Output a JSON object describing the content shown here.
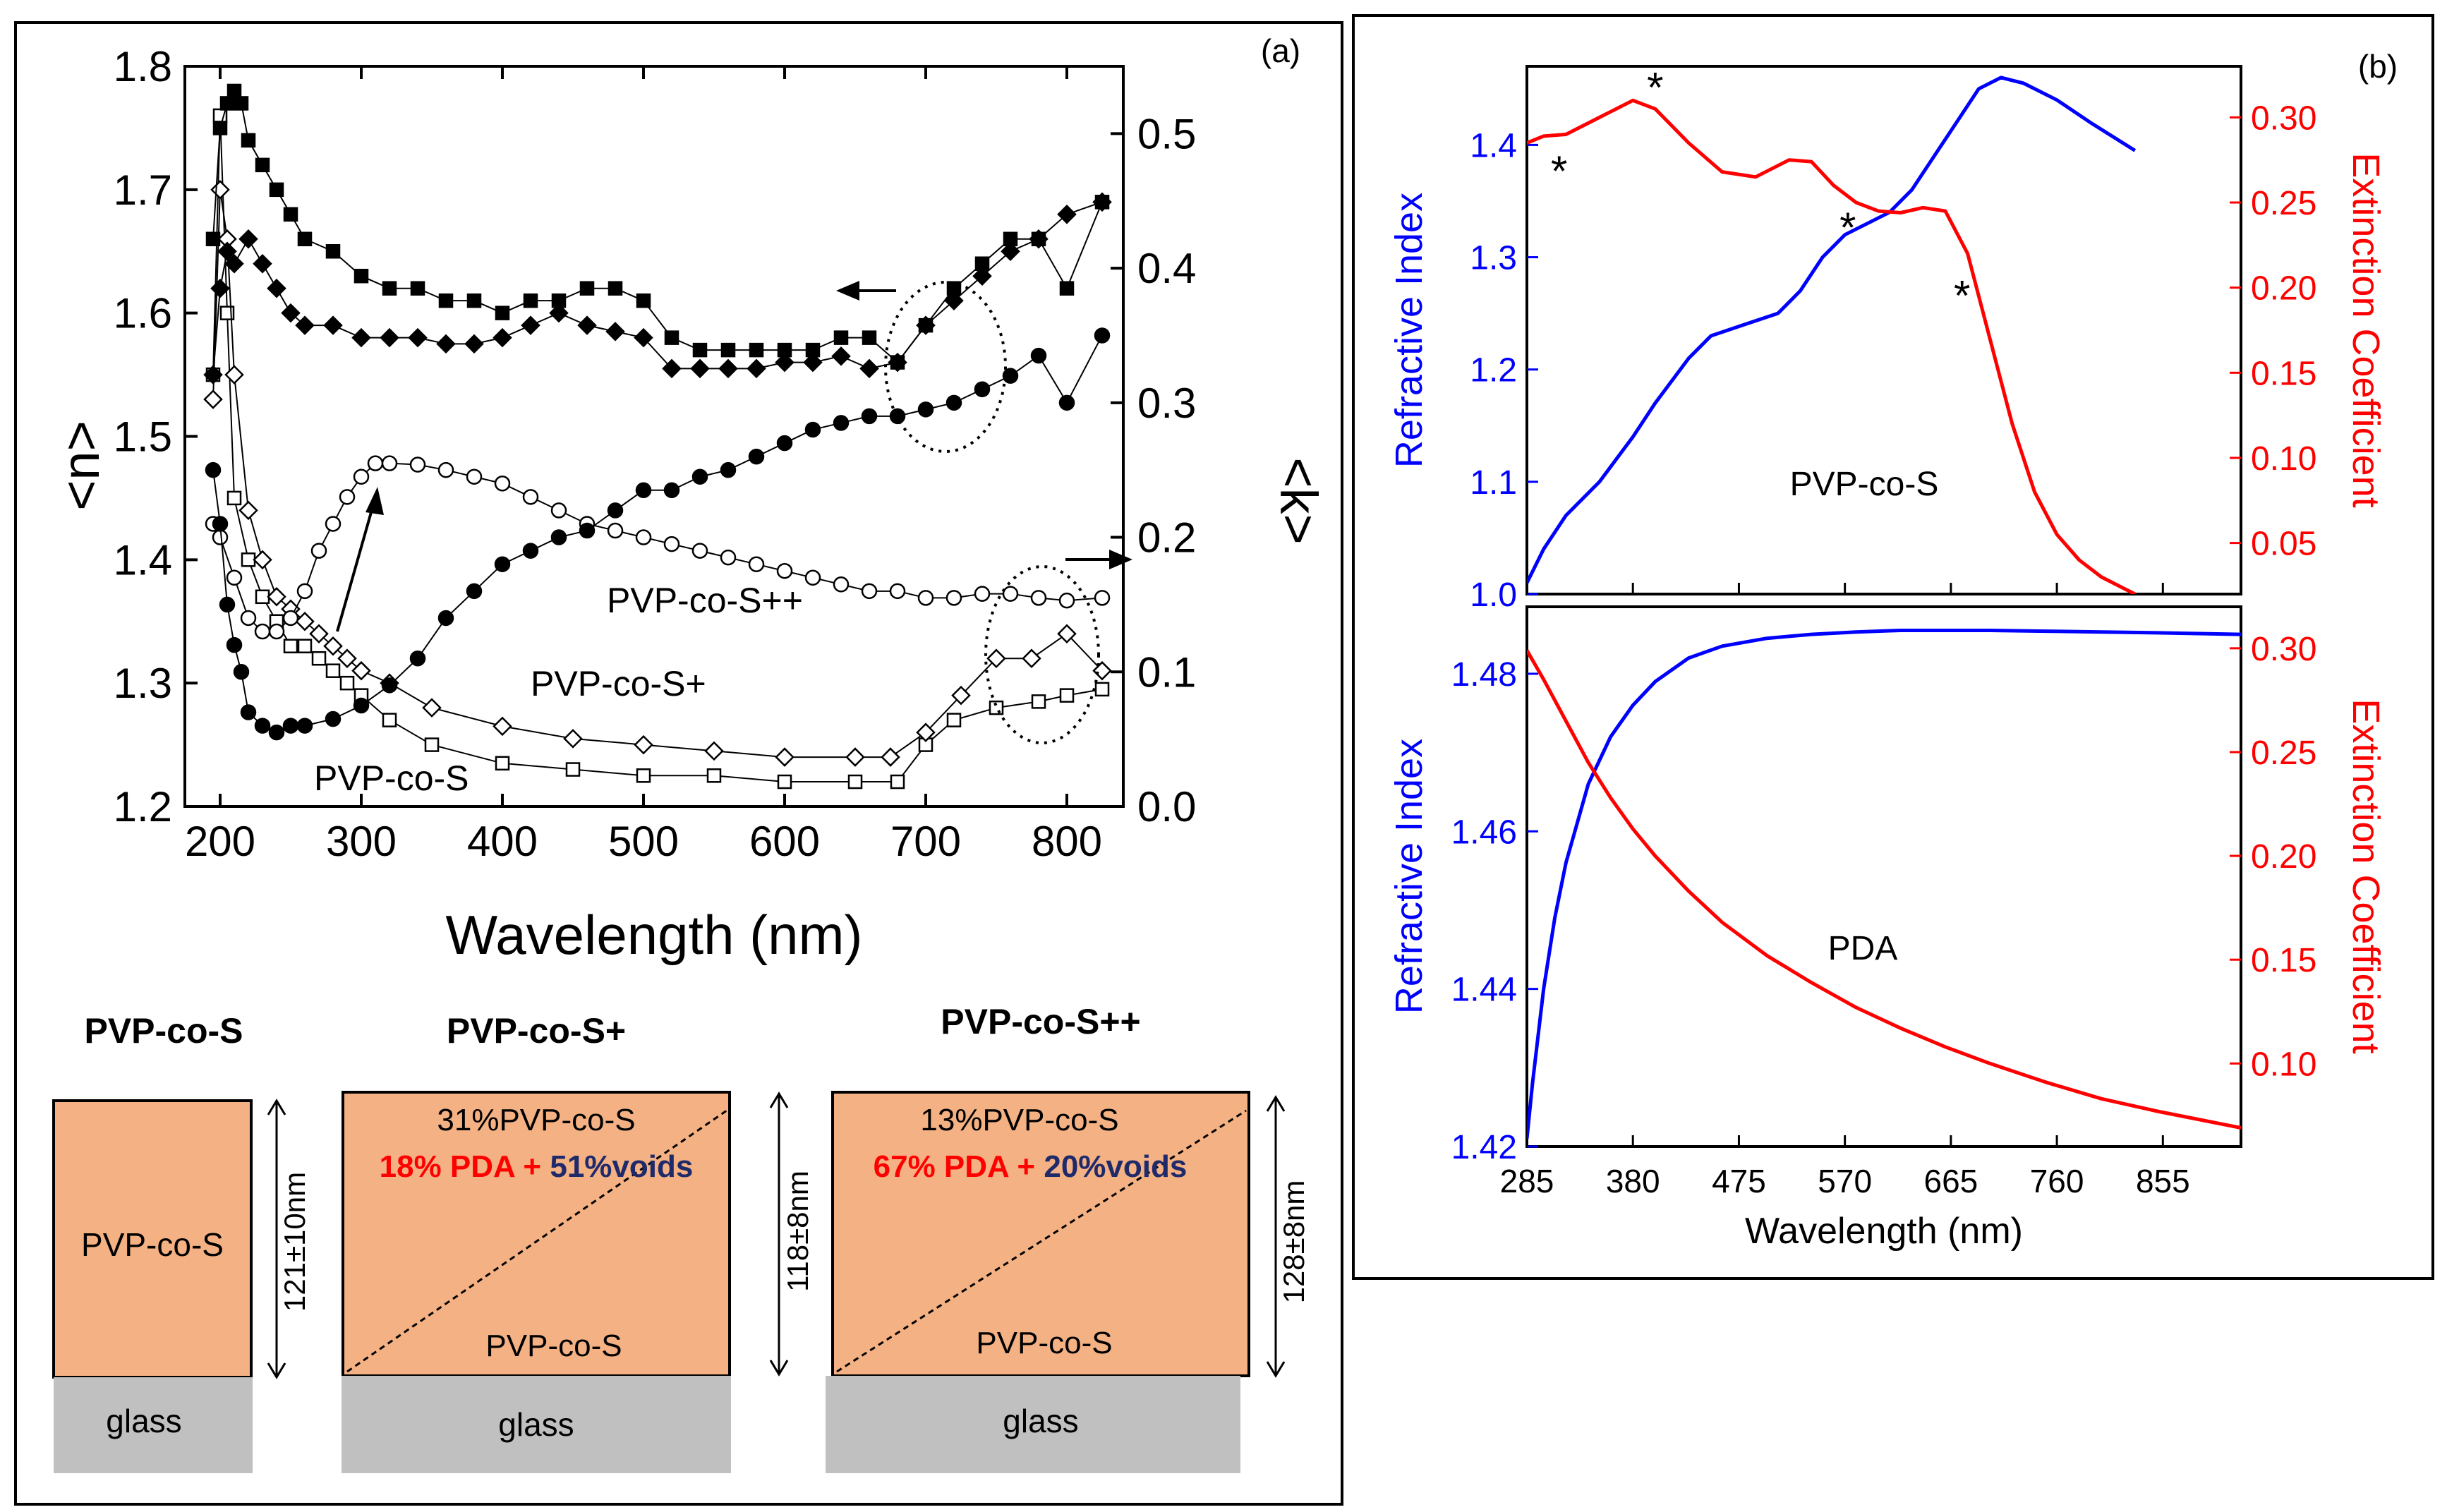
{
  "panel_a": {
    "label": "(a)",
    "xlabel": "Wavelength (nm)",
    "ylabel_left": "<n>",
    "ylabel_right": "<k>",
    "x_ticks": [
      "200",
      "300",
      "400",
      "500",
      "600",
      "700",
      "800"
    ],
    "y_left_ticks": [
      "1.2",
      "1.3",
      "1.4",
      "1.5",
      "1.6",
      "1.7",
      "1.8"
    ],
    "y_right_ticks": [
      "0.0",
      "0.1",
      "0.2",
      "0.3",
      "0.4",
      "0.5"
    ],
    "annotations": {
      "s": "PVP-co-S",
      "s_plus": "PVP-co-S+",
      "s_plus_plus": "PVP-co-S++"
    }
  },
  "schematics": [
    {
      "title": "PVP-co-S",
      "film_label": "PVP-co-S",
      "substrate": "glass",
      "thickness": "121±10nm"
    },
    {
      "title": "PVP-co-S+",
      "top_label": "31%PVP-co-S",
      "pda": "18% PDA",
      "plus": " + ",
      "voids": "51%voids",
      "bottom_label": "PVP-co-S",
      "substrate": "glass",
      "thickness": "118±8nm"
    },
    {
      "title": "PVP-co-S++",
      "top_label": "13%PVP-co-S",
      "pda": "67% PDA",
      "plus": " + ",
      "voids": "20%voids",
      "bottom_label": "PVP-co-S",
      "substrate": "glass",
      "thickness": "128±8nm"
    }
  ],
  "panel_b": {
    "label": "(b)",
    "xlabel": "Wavelength (nm)",
    "top": {
      "ylabel_left": "Refractive Index",
      "ylabel_right": "Extinction Coefficient",
      "left_ticks": [
        "1.0",
        "1.1",
        "1.2",
        "1.3",
        "1.4"
      ],
      "right_ticks": [
        "0.05",
        "0.10",
        "0.15",
        "0.20",
        "0.25",
        "0.30"
      ],
      "annotation": "PVP-co-S",
      "markers": [
        "*",
        "*",
        "*",
        "*"
      ]
    },
    "bottom": {
      "ylabel_left": "Refractive Index",
      "ylabel_right": "Extinction Coefficient",
      "left_ticks": [
        "1.42",
        "1.44",
        "1.46",
        "1.48"
      ],
      "right_ticks": [
        "0.10",
        "0.15",
        "0.20",
        "0.25",
        "0.30"
      ],
      "annotation": "PDA"
    },
    "x_ticks": [
      "285",
      "380",
      "475",
      "570",
      "665",
      "760",
      "855"
    ]
  },
  "colors": {
    "n_curve": "#0000ff",
    "k_curve": "#ff0000",
    "film": "#f4b183",
    "glass": "#c0c0c0",
    "pda_text": "#ff0000",
    "voids_text": "#1f2a6b"
  },
  "chart_data": [
    {
      "type": "scatter",
      "title": "(a)",
      "xlabel": "Wavelength (nm)",
      "ylabel": "<n>",
      "ylabel_right": "<k>",
      "xlim": [
        175,
        840
      ],
      "ylim": [
        1.2,
        1.8
      ],
      "ylim_right": [
        0.0,
        0.55
      ],
      "series": [
        {
          "name": "PVP-co-S n",
          "axis": "left",
          "marker": "open-square",
          "x": [
            195,
            200,
            205,
            210,
            220,
            230,
            240,
            250,
            260,
            270,
            280,
            290,
            300,
            320,
            350,
            400,
            450,
            500,
            550,
            600,
            650,
            680,
            700,
            720,
            750,
            780,
            800,
            825
          ],
          "y": [
            1.55,
            1.76,
            1.6,
            1.45,
            1.4,
            1.37,
            1.35,
            1.33,
            1.33,
            1.32,
            1.31,
            1.3,
            1.29,
            1.27,
            1.25,
            1.235,
            1.23,
            1.225,
            1.225,
            1.22,
            1.22,
            1.22,
            1.25,
            1.27,
            1.28,
            1.285,
            1.29,
            1.295
          ]
        },
        {
          "name": "PVP-co-S+ n",
          "axis": "left",
          "marker": "open-diamond",
          "x": [
            195,
            200,
            205,
            210,
            220,
            230,
            240,
            250,
            260,
            270,
            280,
            290,
            300,
            320,
            350,
            400,
            450,
            500,
            550,
            600,
            650,
            675,
            700,
            725,
            750,
            775,
            800,
            825
          ],
          "y": [
            1.53,
            1.7,
            1.66,
            1.55,
            1.44,
            1.4,
            1.37,
            1.36,
            1.35,
            1.34,
            1.33,
            1.32,
            1.31,
            1.3,
            1.28,
            1.265,
            1.255,
            1.25,
            1.245,
            1.24,
            1.24,
            1.24,
            1.26,
            1.29,
            1.32,
            1.32,
            1.34,
            1.31
          ]
        },
        {
          "name": "PVP-co-S++ k",
          "axis": "right",
          "marker": "open-circle",
          "x": [
            195,
            200,
            210,
            220,
            230,
            240,
            250,
            260,
            270,
            280,
            290,
            300,
            310,
            320,
            340,
            360,
            380,
            400,
            420,
            440,
            460,
            480,
            500,
            520,
            540,
            560,
            580,
            600,
            620,
            640,
            660,
            680,
            700,
            720,
            740,
            760,
            780,
            800,
            825
          ],
          "y": [
            0.21,
            0.2,
            0.17,
            0.14,
            0.13,
            0.13,
            0.14,
            0.16,
            0.19,
            0.21,
            0.23,
            0.245,
            0.255,
            0.255,
            0.254,
            0.25,
            0.245,
            0.24,
            0.23,
            0.22,
            0.21,
            0.205,
            0.2,
            0.195,
            0.19,
            0.185,
            0.18,
            0.175,
            0.17,
            0.165,
            0.16,
            0.16,
            0.155,
            0.155,
            0.158,
            0.158,
            0.155,
            0.153,
            0.155
          ]
        },
        {
          "name": "PVP-co-S n (filled)",
          "axis": "left",
          "marker": "filled-square",
          "x": [
            195,
            200,
            205,
            210,
            215,
            220,
            230,
            240,
            250,
            260,
            280,
            300,
            320,
            340,
            360,
            380,
            400,
            420,
            440,
            460,
            480,
            500,
            520,
            540,
            560,
            580,
            600,
            620,
            640,
            660,
            680,
            700,
            720,
            740,
            760,
            780,
            800,
            825
          ],
          "y": [
            1.66,
            1.75,
            1.77,
            1.78,
            1.77,
            1.74,
            1.72,
            1.7,
            1.68,
            1.66,
            1.65,
            1.63,
            1.62,
            1.62,
            1.61,
            1.61,
            1.6,
            1.61,
            1.61,
            1.62,
            1.62,
            1.61,
            1.58,
            1.57,
            1.57,
            1.57,
            1.57,
            1.57,
            1.58,
            1.58,
            1.56,
            1.59,
            1.62,
            1.64,
            1.66,
            1.66,
            1.62,
            1.69
          ]
        },
        {
          "name": "PVP-co-S+ n (filled)",
          "axis": "left",
          "marker": "filled-diamond",
          "x": [
            195,
            200,
            205,
            210,
            220,
            230,
            240,
            250,
            260,
            280,
            300,
            320,
            340,
            360,
            380,
            400,
            420,
            440,
            460,
            480,
            500,
            520,
            540,
            560,
            580,
            600,
            620,
            640,
            660,
            680,
            700,
            720,
            740,
            760,
            780,
            800,
            825
          ],
          "y": [
            1.55,
            1.62,
            1.65,
            1.64,
            1.66,
            1.64,
            1.62,
            1.6,
            1.59,
            1.59,
            1.58,
            1.58,
            1.58,
            1.575,
            1.575,
            1.58,
            1.59,
            1.6,
            1.59,
            1.585,
            1.58,
            1.555,
            1.555,
            1.555,
            1.555,
            1.56,
            1.56,
            1.565,
            1.555,
            1.56,
            1.59,
            1.61,
            1.63,
            1.65,
            1.66,
            1.68,
            1.69
          ]
        },
        {
          "name": "PVP-co-S++ k (filled)",
          "axis": "right",
          "marker": "filled-circle",
          "x": [
            195,
            200,
            205,
            210,
            215,
            220,
            230,
            240,
            250,
            260,
            280,
            300,
            320,
            340,
            360,
            380,
            400,
            420,
            440,
            460,
            480,
            500,
            520,
            540,
            560,
            580,
            600,
            620,
            640,
            660,
            680,
            700,
            720,
            740,
            760,
            780,
            800,
            825
          ],
          "y": [
            0.25,
            0.21,
            0.15,
            0.12,
            0.1,
            0.07,
            0.06,
            0.055,
            0.06,
            0.06,
            0.065,
            0.075,
            0.09,
            0.11,
            0.14,
            0.16,
            0.18,
            0.19,
            0.2,
            0.205,
            0.22,
            0.235,
            0.235,
            0.245,
            0.25,
            0.26,
            0.27,
            0.28,
            0.285,
            0.29,
            0.29,
            0.295,
            0.3,
            0.31,
            0.32,
            0.335,
            0.3,
            0.35
          ]
        }
      ]
    },
    {
      "type": "line",
      "title": "(b) PVP-co-S",
      "xlabel": "Wavelength (nm)",
      "ylabel": "Refractive Index",
      "ylabel_right": "Extinction Coefficient",
      "xlim": [
        285,
        925
      ],
      "ylim": [
        1.0,
        1.47
      ],
      "ylim_right": [
        0.02,
        0.33
      ],
      "series": [
        {
          "name": "Refractive Index",
          "axis": "left",
          "x": [
            285,
            300,
            320,
            350,
            380,
            400,
            430,
            450,
            480,
            510,
            530,
            550,
            570,
            590,
            610,
            630,
            650,
            670,
            690,
            710,
            730,
            760,
            790,
            830
          ],
          "y": [
            1.01,
            1.04,
            1.07,
            1.1,
            1.14,
            1.17,
            1.21,
            1.23,
            1.24,
            1.25,
            1.27,
            1.3,
            1.32,
            1.33,
            1.34,
            1.36,
            1.39,
            1.42,
            1.45,
            1.46,
            1.455,
            1.44,
            1.42,
            1.395
          ]
        },
        {
          "name": "Extinction Coefficient",
          "axis": "right",
          "x": [
            285,
            300,
            320,
            350,
            380,
            400,
            430,
            460,
            490,
            520,
            540,
            560,
            580,
            600,
            620,
            640,
            660,
            680,
            700,
            720,
            740,
            760,
            780,
            800,
            830
          ],
          "y": [
            0.285,
            0.289,
            0.29,
            0.3,
            0.31,
            0.305,
            0.285,
            0.268,
            0.265,
            0.275,
            0.274,
            0.26,
            0.25,
            0.245,
            0.244,
            0.247,
            0.245,
            0.22,
            0.17,
            0.12,
            0.08,
            0.055,
            0.04,
            0.03,
            0.02
          ]
        }
      ],
      "markers_x": [
        300,
        400,
        560,
        675
      ]
    },
    {
      "type": "line",
      "title": "(b) PDA",
      "xlabel": "Wavelength (nm)",
      "ylabel": "Refractive Index",
      "ylabel_right": "Extinction Coefficient",
      "xlim": [
        285,
        925
      ],
      "ylim": [
        1.42,
        1.4885
      ],
      "ylim_right": [
        0.06,
        0.32
      ],
      "series": [
        {
          "name": "Refractive Index",
          "axis": "left",
          "x": [
            285,
            290,
            300,
            310,
            320,
            340,
            360,
            380,
            400,
            430,
            460,
            500,
            540,
            580,
            620,
            660,
            700,
            750,
            800,
            850,
            925
          ],
          "y": [
            1.421,
            1.428,
            1.44,
            1.449,
            1.456,
            1.466,
            1.472,
            1.476,
            1.479,
            1.482,
            1.4835,
            1.4845,
            1.485,
            1.4853,
            1.4855,
            1.4855,
            1.4855,
            1.4854,
            1.4853,
            1.4852,
            1.485
          ]
        },
        {
          "name": "Extinction Coefficient",
          "axis": "right",
          "x": [
            285,
            300,
            320,
            340,
            360,
            380,
            400,
            430,
            460,
            500,
            540,
            580,
            620,
            660,
            700,
            750,
            800,
            850,
            925
          ],
          "y": [
            0.299,
            0.285,
            0.265,
            0.245,
            0.228,
            0.213,
            0.2,
            0.183,
            0.168,
            0.152,
            0.139,
            0.127,
            0.117,
            0.108,
            0.1,
            0.091,
            0.083,
            0.077,
            0.069
          ]
        }
      ]
    }
  ]
}
